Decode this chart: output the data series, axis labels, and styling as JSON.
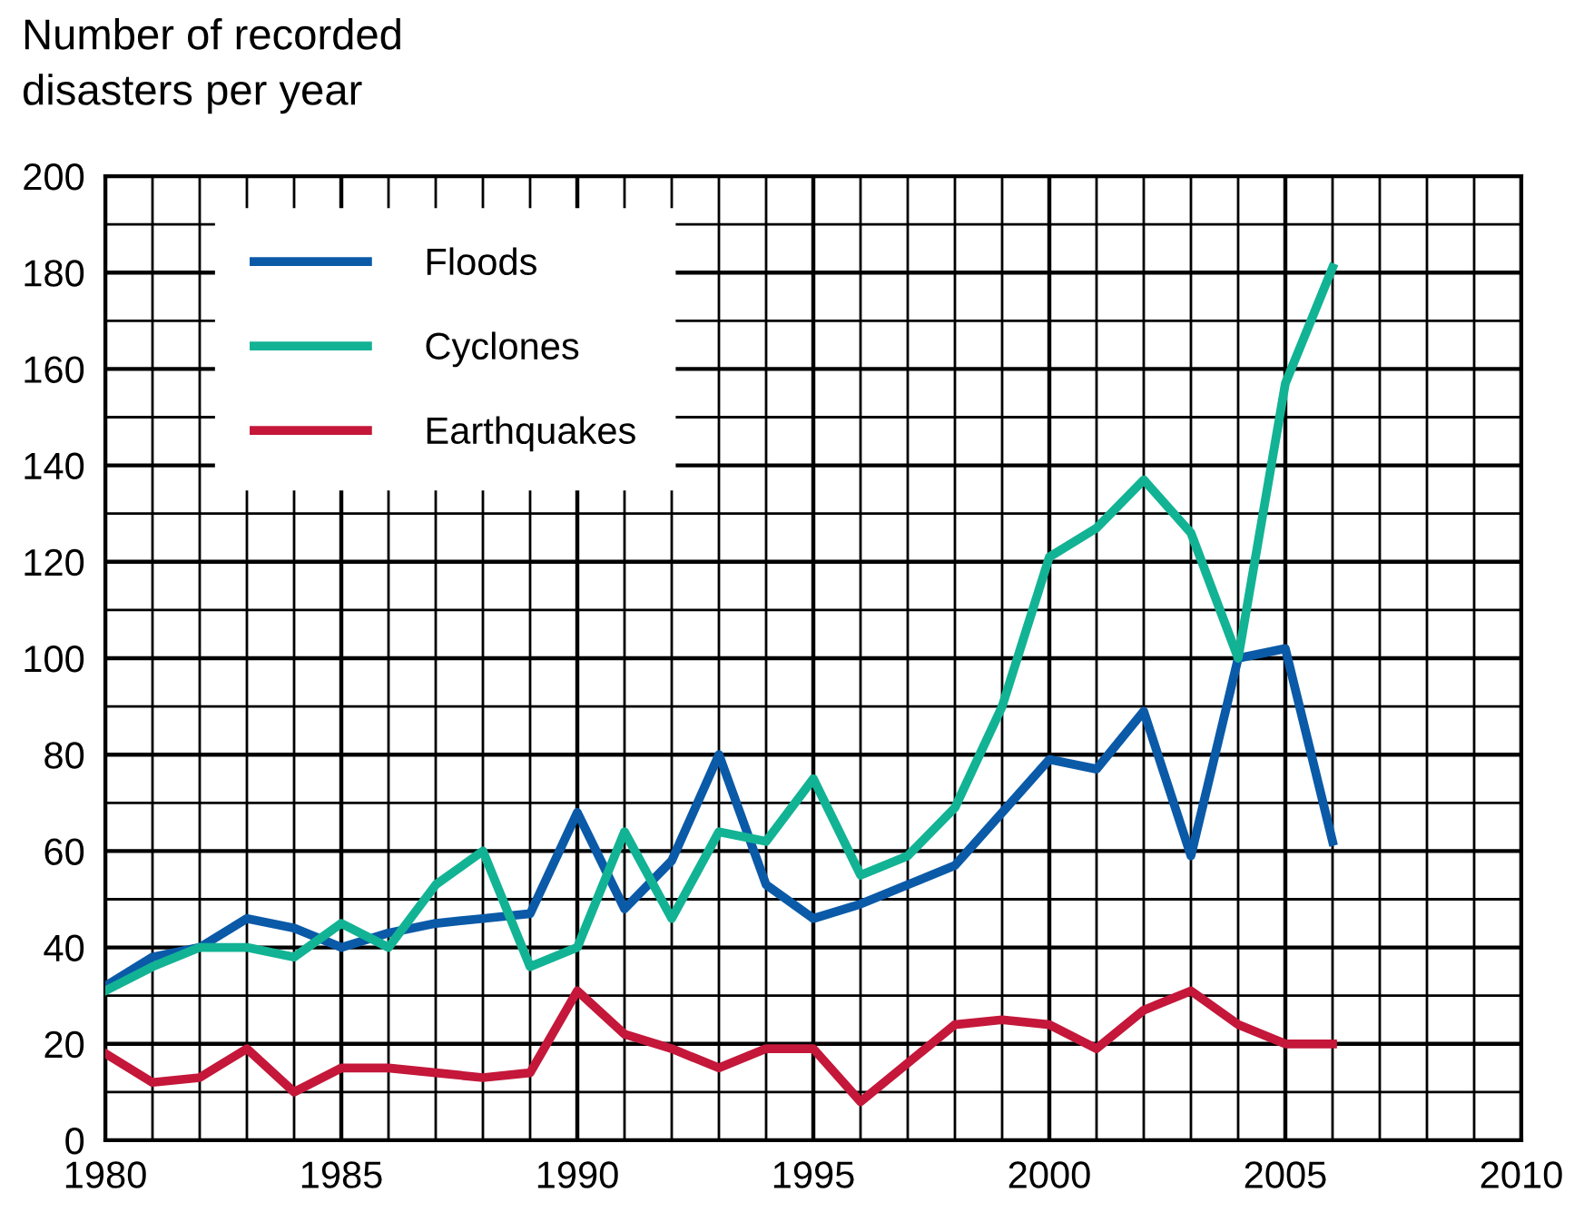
{
  "chart_data": {
    "type": "line",
    "ylabel": "Number of recorded\ndisasters per year",
    "x": [
      1980,
      1981,
      1982,
      1983,
      1984,
      1985,
      1986,
      1987,
      1988,
      1989,
      1990,
      1991,
      1992,
      1993,
      1994,
      1995,
      1996,
      1997,
      1998,
      1999,
      2000,
      2001,
      2002,
      2003,
      2004,
      2005,
      2006
    ],
    "series": [
      {
        "name": "Floods",
        "color": "#0a5aa8",
        "values": [
          32,
          38,
          40,
          46,
          44,
          40,
          43,
          45,
          46,
          47,
          68,
          48,
          58,
          80,
          53,
          46,
          49,
          53,
          57,
          68,
          79,
          77,
          89,
          59,
          100,
          102,
          62
        ]
      },
      {
        "name": "Cyclones",
        "color": "#12b394",
        "values": [
          31,
          36,
          40,
          40,
          38,
          45,
          40,
          53,
          60,
          36,
          40,
          64,
          46,
          64,
          62,
          75,
          55,
          59,
          69,
          90,
          121,
          127,
          137,
          126,
          100,
          157,
          181
        ]
      },
      {
        "name": "Earthquakes",
        "color": "#c4173a",
        "values": [
          18,
          12,
          13,
          19,
          10,
          15,
          15,
          14,
          13,
          14,
          31,
          22,
          19,
          15,
          19,
          19,
          8,
          16,
          24,
          25,
          24,
          19,
          27,
          31,
          24,
          20,
          20
        ]
      }
    ],
    "xlim": [
      1980,
      2010
    ],
    "xticks": [
      1980,
      1985,
      1990,
      1995,
      2000,
      2005,
      2010
    ],
    "ylim": [
      0,
      200
    ],
    "yticks": [
      0,
      20,
      40,
      60,
      80,
      100,
      120,
      140,
      160,
      180,
      200
    ],
    "grid": true,
    "legend": "top left",
    "marker": "none",
    "line_style": "solid"
  }
}
